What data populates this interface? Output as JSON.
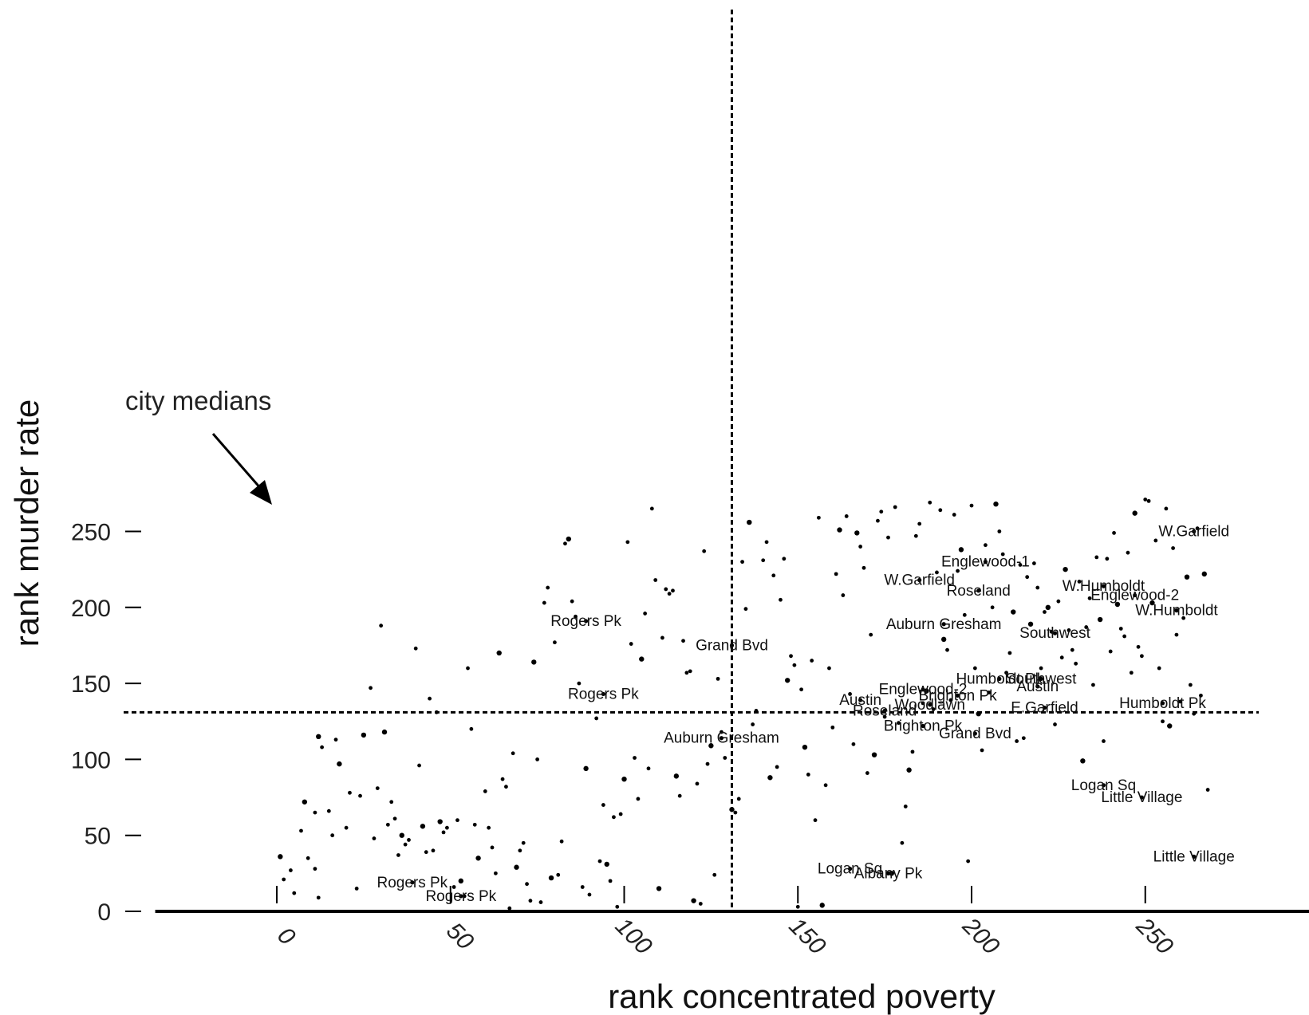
{
  "chart_data": {
    "type": "scatter",
    "title": "",
    "xlabel": "rank concentrated poverty",
    "ylabel": "rank murder rate",
    "xlim": [
      -27,
      290
    ],
    "ylim": [
      0,
      280
    ],
    "x_ticks": [
      0,
      50,
      100,
      150,
      200,
      250
    ],
    "y_ticks": [
      0,
      50,
      100,
      150,
      200,
      250
    ],
    "grid": false,
    "median_lines": {
      "x": 131,
      "y": 131
    },
    "annotation": {
      "text": "city medians"
    },
    "points": [
      [
        1,
        36
      ],
      [
        2,
        21
      ],
      [
        4,
        27
      ],
      [
        5,
        12
      ],
      [
        7,
        53
      ],
      [
        8,
        72
      ],
      [
        9,
        35
      ],
      [
        11,
        65
      ],
      [
        11,
        28
      ],
      [
        12,
        9
      ],
      [
        12,
        115
      ],
      [
        13,
        108
      ],
      [
        15,
        66
      ],
      [
        16,
        50
      ],
      [
        17,
        113
      ],
      [
        18,
        97
      ],
      [
        20,
        55
      ],
      [
        21,
        78
      ],
      [
        23,
        15
      ],
      [
        24,
        76
      ],
      [
        25,
        116
      ],
      [
        27,
        147
      ],
      [
        28,
        48
      ],
      [
        29,
        81
      ],
      [
        30,
        188
      ],
      [
        31,
        118
      ],
      [
        32,
        57
      ],
      [
        33,
        72
      ],
      [
        34,
        61
      ],
      [
        35,
        37
      ],
      [
        36,
        50
      ],
      [
        37,
        44
      ],
      [
        38,
        47
      ],
      [
        40,
        173
      ],
      [
        41,
        96
      ],
      [
        42,
        56
      ],
      [
        43,
        39
      ],
      [
        44,
        140
      ],
      [
        45,
        40
      ],
      [
        46,
        131
      ],
      [
        47,
        59
      ],
      [
        48,
        52
      ],
      [
        49,
        55
      ],
      [
        51,
        16
      ],
      [
        52,
        60
      ],
      [
        53,
        20
      ],
      [
        54,
        10
      ],
      [
        55,
        160
      ],
      [
        56,
        120
      ],
      [
        57,
        57
      ],
      [
        58,
        35
      ],
      [
        60,
        79
      ],
      [
        61,
        55
      ],
      [
        62,
        42
      ],
      [
        63,
        25
      ],
      [
        64,
        170
      ],
      [
        65,
        87
      ],
      [
        66,
        82
      ],
      [
        67,
        2
      ],
      [
        68,
        104
      ],
      [
        69,
        29
      ],
      [
        70,
        40
      ],
      [
        71,
        45
      ],
      [
        72,
        18
      ],
      [
        73,
        7
      ],
      [
        74,
        164
      ],
      [
        75,
        100
      ],
      [
        76,
        6
      ],
      [
        77,
        203
      ],
      [
        78,
        213
      ],
      [
        79,
        22
      ],
      [
        80,
        177
      ],
      [
        81,
        24
      ],
      [
        82,
        46
      ],
      [
        83,
        242
      ],
      [
        84,
        245
      ],
      [
        85,
        204
      ],
      [
        86,
        194
      ],
      [
        87,
        150
      ],
      [
        88,
        16
      ],
      [
        89,
        94
      ],
      [
        90,
        11
      ],
      [
        92,
        127
      ],
      [
        93,
        33
      ],
      [
        94,
        70
      ],
      [
        95,
        31
      ],
      [
        96,
        20
      ],
      [
        97,
        62
      ],
      [
        98,
        3
      ],
      [
        99,
        64
      ],
      [
        100,
        87
      ],
      [
        101,
        243
      ],
      [
        102,
        176
      ],
      [
        103,
        101
      ],
      [
        104,
        74
      ],
      [
        105,
        166
      ],
      [
        106,
        196
      ],
      [
        107,
        94
      ],
      [
        108,
        265
      ],
      [
        109,
        218
      ],
      [
        110,
        15
      ],
      [
        111,
        180
      ],
      [
        112,
        212
      ],
      [
        113,
        209
      ],
      [
        114,
        211
      ],
      [
        115,
        89
      ],
      [
        116,
        76
      ],
      [
        117,
        178
      ],
      [
        118,
        157
      ],
      [
        119,
        158
      ],
      [
        120,
        7
      ],
      [
        121,
        84
      ],
      [
        122,
        5
      ],
      [
        123,
        237
      ],
      [
        124,
        97
      ],
      [
        125,
        109
      ],
      [
        126,
        24
      ],
      [
        127,
        153
      ],
      [
        128,
        118
      ],
      [
        129,
        101
      ],
      [
        131,
        67
      ],
      [
        132,
        65
      ],
      [
        133,
        74
      ],
      [
        134,
        230
      ],
      [
        135,
        199
      ],
      [
        136,
        256
      ],
      [
        137,
        123
      ],
      [
        138,
        132
      ],
      [
        140,
        231
      ],
      [
        141,
        243
      ],
      [
        142,
        88
      ],
      [
        143,
        221
      ],
      [
        144,
        95
      ],
      [
        145,
        205
      ],
      [
        146,
        232
      ],
      [
        147,
        152
      ],
      [
        148,
        168
      ],
      [
        149,
        162
      ],
      [
        150,
        3
      ],
      [
        151,
        146
      ],
      [
        152,
        108
      ],
      [
        153,
        90
      ],
      [
        154,
        165
      ],
      [
        155,
        60
      ],
      [
        156,
        259
      ],
      [
        157,
        4
      ],
      [
        158,
        83
      ],
      [
        159,
        160
      ],
      [
        160,
        121
      ],
      [
        161,
        222
      ],
      [
        162,
        251
      ],
      [
        163,
        208
      ],
      [
        164,
        260
      ],
      [
        165,
        143
      ],
      [
        166,
        110
      ],
      [
        167,
        249
      ],
      [
        168,
        240
      ],
      [
        169,
        226
      ],
      [
        170,
        91
      ],
      [
        171,
        182
      ],
      [
        172,
        103
      ],
      [
        173,
        257
      ],
      [
        174,
        263
      ],
      [
        175,
        128
      ],
      [
        176,
        246
      ],
      [
        177,
        25
      ],
      [
        178,
        266
      ],
      [
        179,
        124
      ],
      [
        180,
        45
      ],
      [
        181,
        69
      ],
      [
        182,
        93
      ],
      [
        183,
        105
      ],
      [
        184,
        247
      ],
      [
        185,
        255
      ],
      [
        186,
        137
      ],
      [
        187,
        145
      ],
      [
        188,
        269
      ],
      [
        189,
        133
      ],
      [
        190,
        223
      ],
      [
        191,
        264
      ],
      [
        192,
        179
      ],
      [
        193,
        172
      ],
      [
        194,
        139
      ],
      [
        195,
        261
      ],
      [
        196,
        224
      ],
      [
        197,
        238
      ],
      [
        198,
        195
      ],
      [
        199,
        33
      ],
      [
        200,
        267
      ],
      [
        201,
        160
      ],
      [
        202,
        130
      ],
      [
        203,
        106
      ],
      [
        204,
        241
      ],
      [
        205,
        144
      ],
      [
        206,
        200
      ],
      [
        207,
        268
      ],
      [
        208,
        250
      ],
      [
        209,
        235
      ],
      [
        210,
        157
      ],
      [
        211,
        170
      ],
      [
        212,
        197
      ],
      [
        213,
        112
      ],
      [
        214,
        228
      ],
      [
        215,
        114
      ],
      [
        216,
        220
      ],
      [
        217,
        189
      ],
      [
        218,
        229
      ],
      [
        219,
        213
      ],
      [
        220,
        160
      ],
      [
        221,
        197
      ],
      [
        222,
        200
      ],
      [
        223,
        184
      ],
      [
        224,
        123
      ],
      [
        225,
        204
      ],
      [
        226,
        167
      ],
      [
        227,
        225
      ],
      [
        228,
        185
      ],
      [
        229,
        172
      ],
      [
        230,
        163
      ],
      [
        231,
        217
      ],
      [
        232,
        99
      ],
      [
        233,
        187
      ],
      [
        234,
        206
      ],
      [
        235,
        149
      ],
      [
        236,
        233
      ],
      [
        237,
        192
      ],
      [
        238,
        112
      ],
      [
        239,
        232
      ],
      [
        240,
        171
      ],
      [
        241,
        249
      ],
      [
        242,
        202
      ],
      [
        243,
        186
      ],
      [
        244,
        181
      ],
      [
        245,
        236
      ],
      [
        246,
        157
      ],
      [
        247,
        262
      ],
      [
        248,
        174
      ],
      [
        249,
        168
      ],
      [
        250,
        271
      ],
      [
        251,
        270
      ],
      [
        252,
        203
      ],
      [
        253,
        244
      ],
      [
        254,
        160
      ],
      [
        255,
        125
      ],
      [
        256,
        265
      ],
      [
        257,
        122
      ],
      [
        258,
        239
      ],
      [
        259,
        182
      ],
      [
        260,
        138
      ],
      [
        261,
        193
      ],
      [
        262,
        220
      ],
      [
        263,
        149
      ],
      [
        264,
        130
      ],
      [
        265,
        252
      ],
      [
        266,
        142
      ],
      [
        267,
        222
      ],
      [
        268,
        80
      ]
    ],
    "labeled_points": [
      {
        "text": "W.Garfield",
        "x": 264,
        "y": 250
      },
      {
        "text": "Englewood-1",
        "x": 204,
        "y": 230
      },
      {
        "text": "W.Garfield",
        "x": 185,
        "y": 218
      },
      {
        "text": "W.Humboldt",
        "x": 238,
        "y": 214
      },
      {
        "text": "Roseland",
        "x": 202,
        "y": 211
      },
      {
        "text": "Englewood-2",
        "x": 247,
        "y": 208
      },
      {
        "text": "W.Humboldt",
        "x": 259,
        "y": 198
      },
      {
        "text": "Rogers Pk",
        "x": 89,
        "y": 191
      },
      {
        "text": "Auburn Gresham",
        "x": 192,
        "y": 189
      },
      {
        "text": "Southwest",
        "x": 224,
        "y": 183
      },
      {
        "text": "Grand Bvd",
        "x": 131,
        "y": 175
      },
      {
        "text": "Humboldt Pk",
        "x": 208,
        "y": 153
      },
      {
        "text": "Southwest",
        "x": 220,
        "y": 153
      },
      {
        "text": "Austin",
        "x": 219,
        "y": 148
      },
      {
        "text": "Englewood-2",
        "x": 186,
        "y": 146
      },
      {
        "text": "Rogers Pk",
        "x": 94,
        "y": 143
      },
      {
        "text": "Brighton Pk",
        "x": 196,
        "y": 142
      },
      {
        "text": "Austin",
        "x": 168,
        "y": 139
      },
      {
        "text": "Humboldt Pk",
        "x": 255,
        "y": 137
      },
      {
        "text": "Woodlawn",
        "x": 188,
        "y": 136
      },
      {
        "text": "E.Garfield",
        "x": 221,
        "y": 134
      },
      {
        "text": "Roseland",
        "x": 175,
        "y": 132
      },
      {
        "text": "Brighton Pk",
        "x": 186,
        "y": 122
      },
      {
        "text": "Grand Bvd",
        "x": 201,
        "y": 117
      },
      {
        "text": "Auburn Gresham",
        "x": 128,
        "y": 114
      },
      {
        "text": "Logan Sq",
        "x": 238,
        "y": 83
      },
      {
        "text": "Little Village",
        "x": 249,
        "y": 75
      },
      {
        "text": "Little Village",
        "x": 264,
        "y": 36
      },
      {
        "text": "Logan Sq",
        "x": 165,
        "y": 28
      },
      {
        "text": "Albany Pk",
        "x": 176,
        "y": 25
      },
      {
        "text": "Rogers Pk",
        "x": 39,
        "y": 19
      },
      {
        "text": "Rogers Pk",
        "x": 53,
        "y": 10
      }
    ]
  }
}
